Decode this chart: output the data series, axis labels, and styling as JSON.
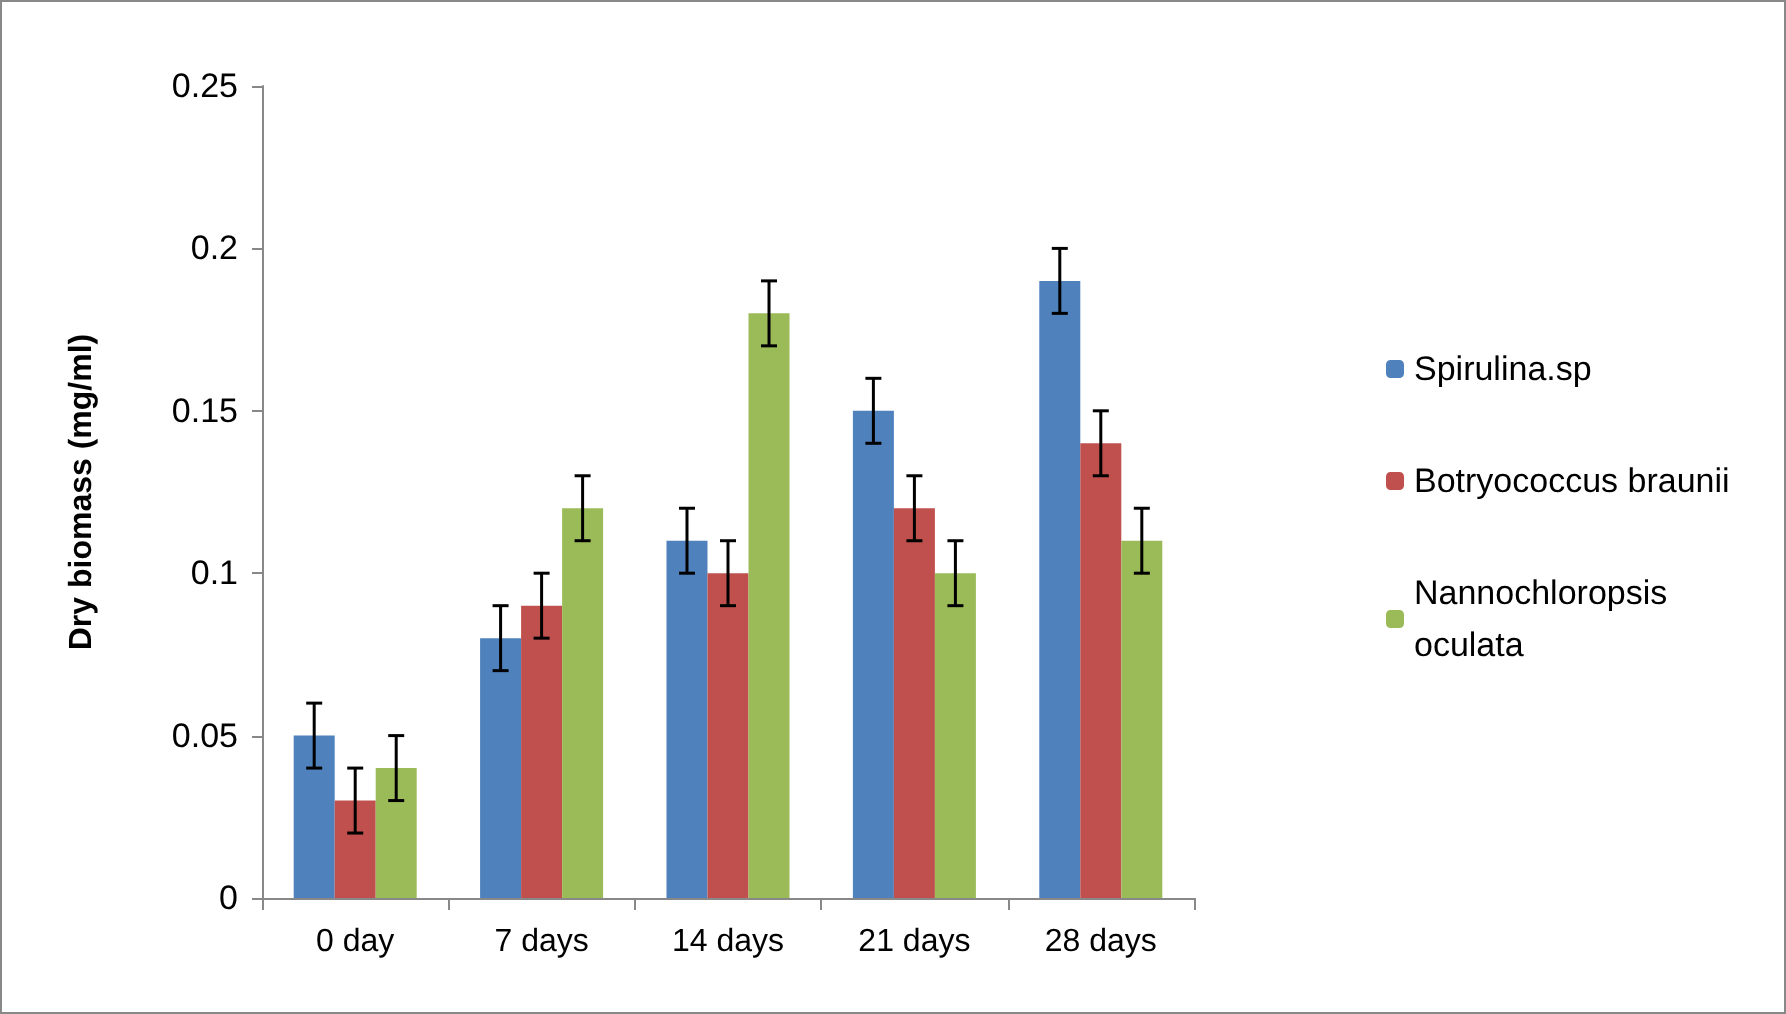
{
  "chart_data": {
    "type": "bar",
    "ylabel": "Dry biomass (mg/ml)",
    "categories": [
      "0 day",
      "7 days",
      "14 days",
      "21 days",
      "28 days"
    ],
    "series": [
      {
        "name": "Spirulina.sp",
        "color": "#4f81bd",
        "values": [
          0.05,
          0.08,
          0.11,
          0.15,
          0.19
        ],
        "errors": [
          0.01,
          0.01,
          0.01,
          0.01,
          0.01
        ]
      },
      {
        "name": "Botryococcus braunii",
        "color": "#c0504d",
        "values": [
          0.03,
          0.09,
          0.1,
          0.12,
          0.14
        ],
        "errors": [
          0.01,
          0.01,
          0.01,
          0.01,
          0.01
        ]
      },
      {
        "name": "Nannochloropsis oculata",
        "color": "#9bbb59",
        "values": [
          0.04,
          0.12,
          0.18,
          0.1,
          0.11
        ],
        "errors": [
          0.01,
          0.01,
          0.01,
          0.01,
          0.01
        ]
      }
    ],
    "ylim": [
      0,
      0.25
    ],
    "yticks": [
      0,
      0.05,
      0.1,
      0.15,
      0.2,
      0.25
    ],
    "grid": false,
    "legend": "right"
  }
}
